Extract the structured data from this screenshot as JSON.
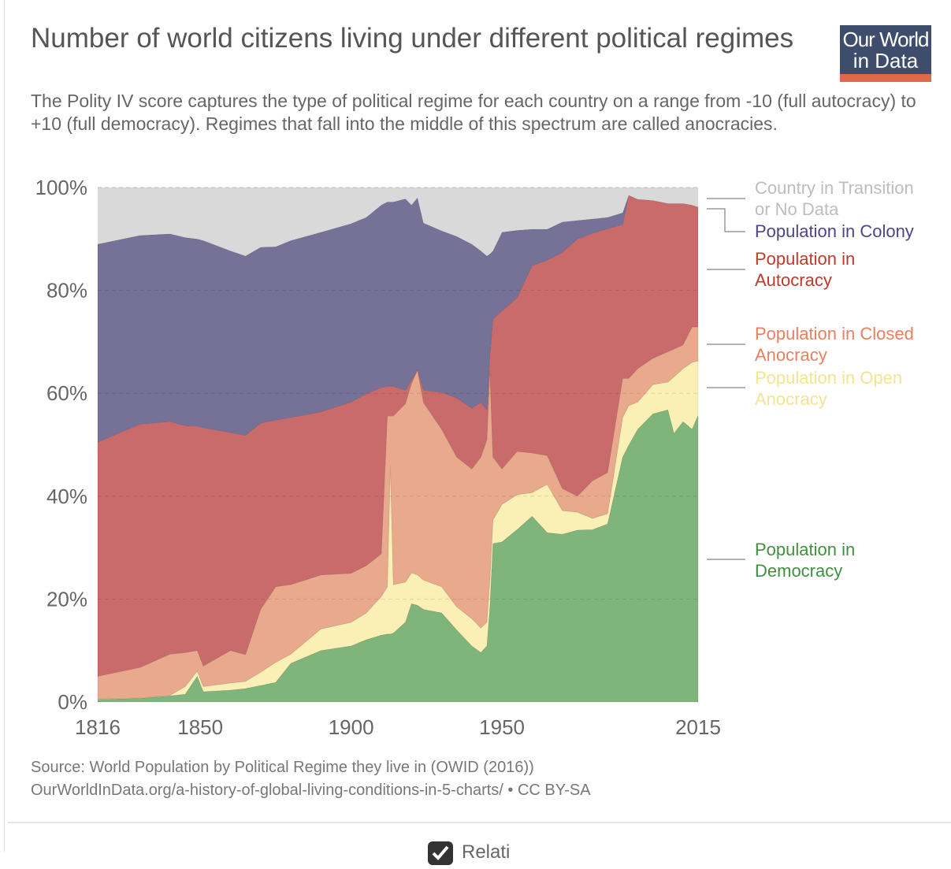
{
  "header": {
    "title": "Number of world citizens living under different political regimes",
    "subtitle": "The Polity IV score captures the type of political regime for each country on a range from -10 (full autocracy) to +10 (full democracy). Regimes that fall into the middle of this spectrum are called anocracies.",
    "logo_text": [
      "Our World",
      "in Data"
    ],
    "logo_colors": {
      "background": "#3d4d6b",
      "accent": "#e0684b"
    }
  },
  "footer": {
    "source": "Source: World Population by Political Regime they live in (OWID (2016))",
    "link": "OurWorldInData.org/a-history-of-global-living-conditions-in-5-charts/ • CC BY-SA",
    "relative_checkbox_label": "Relati",
    "relative_checked": true
  },
  "chart_data": {
    "type": "area",
    "stacked": true,
    "grid": true,
    "legend_placement": "right",
    "xlim": [
      1816,
      2015
    ],
    "ylim": [
      0,
      100
    ],
    "x_ticks": [
      "1816",
      "1850",
      "1900",
      "1950",
      "2015"
    ],
    "y_ticks": [
      "0%",
      "20%",
      "40%",
      "60%",
      "80%",
      "100%"
    ],
    "x": [
      1816,
      1830,
      1840,
      1845,
      1849,
      1851,
      1860,
      1865,
      1870,
      1875,
      1880,
      1890,
      1900,
      1905,
      1910,
      1912,
      1913,
      1914,
      1918,
      1920,
      1922,
      1924,
      1930,
      1935,
      1940,
      1943,
      1945,
      1946,
      1947,
      1950,
      1955,
      1960,
      1965,
      1970,
      1975,
      1980,
      1985,
      1990,
      1992,
      1995,
      2000,
      2005,
      2007,
      2010,
      2013,
      2015
    ],
    "series": [
      {
        "name": "Population in Democracy",
        "color": "#7fb47a",
        "label_color": "#3f9140",
        "values": [
          0.5,
          0.7,
          1.2,
          1.5,
          5,
          2,
          2.3,
          2.6,
          3.2,
          3.8,
          7.5,
          10,
          10.9,
          12.1,
          13,
          13.2,
          13.2,
          13.4,
          15.5,
          19.1,
          18.8,
          18,
          17.3,
          14,
          10.9,
          9.6,
          10.9,
          18.5,
          30.8,
          31.1,
          33.5,
          36.1,
          32.9,
          32.6,
          33.4,
          33.5,
          34.6,
          47.6,
          49.9,
          53,
          56,
          56.8,
          52.2,
          54.5,
          53,
          55.7
        ]
      },
      {
        "name": "Population in Open Anocracy",
        "color": "#faefb4",
        "label_color": "#f3e58f",
        "values": [
          0.1,
          0.1,
          0.1,
          1.5,
          1,
          1,
          1.4,
          1.4,
          2.6,
          3.9,
          1.8,
          4.2,
          4.6,
          5.2,
          7.5,
          9.2,
          32.8,
          9.4,
          7.8,
          6,
          5.9,
          5.7,
          5.1,
          4.5,
          5.3,
          4.8,
          4.6,
          5.4,
          4.6,
          7.3,
          6.8,
          4.6,
          9.4,
          4.6,
          3.5,
          2.2,
          2,
          7.7,
          7.7,
          5.3,
          5.7,
          5.4,
          11,
          10.3,
          13,
          10.6
        ]
      },
      {
        "name": "Population in Closed Anocracy",
        "color": "#e8a98c",
        "label_color": "#e8805f",
        "values": [
          4.4,
          5.9,
          8,
          6.6,
          4,
          4,
          6.3,
          5.2,
          12.2,
          14.7,
          13.5,
          10.5,
          9.5,
          9.2,
          8.3,
          33.2,
          9.6,
          32.8,
          34.7,
          36.8,
          39.8,
          34.5,
          30.6,
          29.1,
          29.1,
          33.2,
          35.5,
          40.6,
          12.2,
          6.9,
          8.4,
          7.7,
          5.6,
          4.3,
          3.1,
          7.3,
          8,
          7.6,
          5.3,
          6.5,
          5.1,
          5.9,
          5.4,
          4.6,
          6.9,
          6.6
        ]
      },
      {
        "name": "Population in Autocracy",
        "color": "#ca6b6b",
        "label_color": "#c0392b",
        "values": [
          45.5,
          47.3,
          45.2,
          44.1,
          43.6,
          46.3,
          42.4,
          42.6,
          36.2,
          32.4,
          32.5,
          31.7,
          33.3,
          33.4,
          32.3,
          5.8,
          5.8,
          5.8,
          2.6,
          0.6,
          0,
          2.4,
          7.2,
          11.5,
          11.8,
          10.6,
          5.8,
          3,
          26.8,
          30.7,
          29.9,
          36.4,
          38,
          45.9,
          50,
          48.1,
          47.4,
          29.9,
          35.6,
          32.9,
          30.7,
          28.8,
          28.3,
          27.5,
          23.7,
          23.3
        ]
      },
      {
        "name": "Population in Colony",
        "color": "#767196",
        "label_color": "#4a4589",
        "values": [
          38.5,
          36.7,
          36.5,
          36.6,
          36.4,
          36.4,
          35.3,
          34.9,
          34.2,
          33.7,
          34.4,
          34.9,
          34.7,
          34.3,
          35.5,
          35.8,
          35.8,
          35.8,
          37.2,
          34.1,
          33.5,
          32.5,
          31.4,
          31.4,
          31.9,
          29.5,
          29.9,
          19.6,
          13.3,
          15.3,
          13.1,
          7.1,
          6,
          5.9,
          3.6,
          2.8,
          2.2,
          2.3,
          0,
          0,
          0,
          0,
          0,
          0,
          0,
          0
        ]
      },
      {
        "name": "Country in Transition or No Data",
        "color": "#d9d9d9",
        "label_color": "#bdbdbd",
        "values": [
          11,
          9.3,
          9,
          9.7,
          10,
          10.3,
          12.3,
          13.3,
          11.6,
          11.5,
          10.3,
          8.7,
          7,
          5.8,
          3.4,
          2.8,
          2.8,
          2.8,
          2.2,
          3.4,
          2,
          6.9,
          8.4,
          9.5,
          11,
          12.3,
          13.3,
          12.9,
          12.3,
          8.7,
          8.3,
          8.1,
          8.1,
          6.7,
          6.4,
          6.1,
          5.8,
          4.9,
          1.5,
          2.3,
          2.5,
          3.1,
          3.1,
          3.1,
          3.4,
          3.8
        ]
      }
    ],
    "legend_labels": [
      [
        "Country in Transition",
        "or No Data"
      ],
      [
        "Population in Colony"
      ],
      [
        "Population in",
        "Autocracy"
      ],
      [
        "Population in Closed",
        "Anocracy"
      ],
      [
        "Population in Open",
        "Anocracy"
      ],
      [
        "Population in",
        "Democracy"
      ]
    ]
  }
}
